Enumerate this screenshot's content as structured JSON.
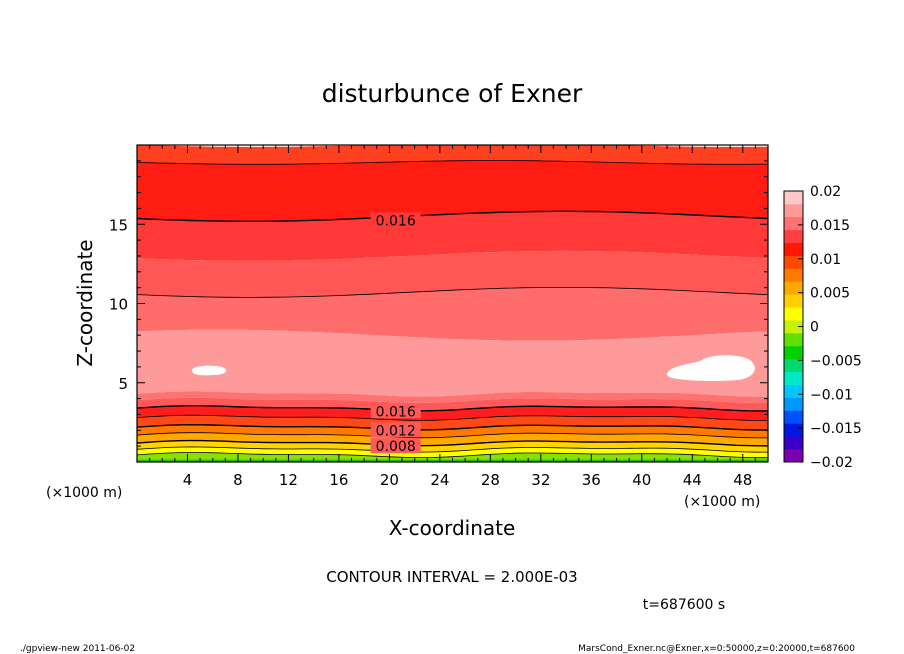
{
  "chart_data": {
    "type": "heatmap",
    "title": "disturbunce of Exner",
    "xlabel": "X-coordinate",
    "ylabel": "Z-coordinate",
    "x_unit": "(×1000 m)",
    "y_unit": "(×1000 m)",
    "xlim": [
      0,
      50
    ],
    "ylim": [
      0,
      20
    ],
    "x_ticks": [
      "4",
      "8",
      "12",
      "16",
      "20",
      "24",
      "28",
      "32",
      "36",
      "40",
      "44",
      "48"
    ],
    "y_ticks": [
      "5",
      "10",
      "15"
    ],
    "contour_interval_text": "CONTOUR INTERVAL = 2.000E-03",
    "contour_labels": [
      "0.016",
      "0.016",
      "0.012",
      "0.008"
    ],
    "time_text": "t=687600 s",
    "colorbar": {
      "ticks": [
        "0.02",
        "0.015",
        "0.01",
        "0.005",
        "0",
        "−0.005",
        "−0.01",
        "−0.015",
        "−0.02"
      ],
      "range": [
        -0.02,
        0.02
      ],
      "colors": [
        "#7a00b0",
        "#3b00c8",
        "#0018e0",
        "#0050ff",
        "#0098ff",
        "#00c8ff",
        "#00e8c8",
        "#00d870",
        "#00d000",
        "#60e000",
        "#c8f000",
        "#ffff00",
        "#ffd000",
        "#ffa800",
        "#ff7800",
        "#ff4800",
        "#ff1800",
        "#ff4040",
        "#ff7070",
        "#ff9a9a",
        "#ffc8c8"
      ]
    },
    "field_bands": [
      {
        "z_top": 20.0,
        "value": 0.0165,
        "color": "#ff4020"
      },
      {
        "z_top": 18.9,
        "value": 0.0175,
        "color": "#ff1c12"
      },
      {
        "z_top": 15.5,
        "value": 0.015,
        "color": "#ff3838"
      },
      {
        "z_top": 13.0,
        "value": 0.0135,
        "color": "#ff5656"
      },
      {
        "z_top": 10.7,
        "value": 0.0125,
        "color": "#ff6c6c"
      },
      {
        "z_top": 8.0,
        "value": 0.011,
        "color": "#ff9a9a"
      },
      {
        "z_top": 4.3,
        "value": 0.012,
        "color": "#ff7272"
      },
      {
        "z_top": 3.9,
        "value": 0.013,
        "color": "#ff5a5a"
      },
      {
        "z_top": 3.4,
        "value": 0.016,
        "color": "#ff1e1e"
      },
      {
        "z_top": 2.8,
        "value": 0.0145,
        "color": "#ff4818"
      },
      {
        "z_top": 2.2,
        "value": 0.0125,
        "color": "#ff7800"
      },
      {
        "z_top": 1.7,
        "value": 0.0105,
        "color": "#ffa800"
      },
      {
        "z_top": 1.2,
        "value": 0.0085,
        "color": "#ffd400"
      },
      {
        "z_top": 0.8,
        "value": 0.006,
        "color": "#ffff00"
      },
      {
        "z_top": 0.45,
        "value": 0.004,
        "color": "#c8f000"
      }
    ],
    "footer_left": "./gpview-new   2011-06-02",
    "footer_right": "MarsCond_Exner.nc@Exner,x=0:50000,z=0:20000,t=687600"
  }
}
